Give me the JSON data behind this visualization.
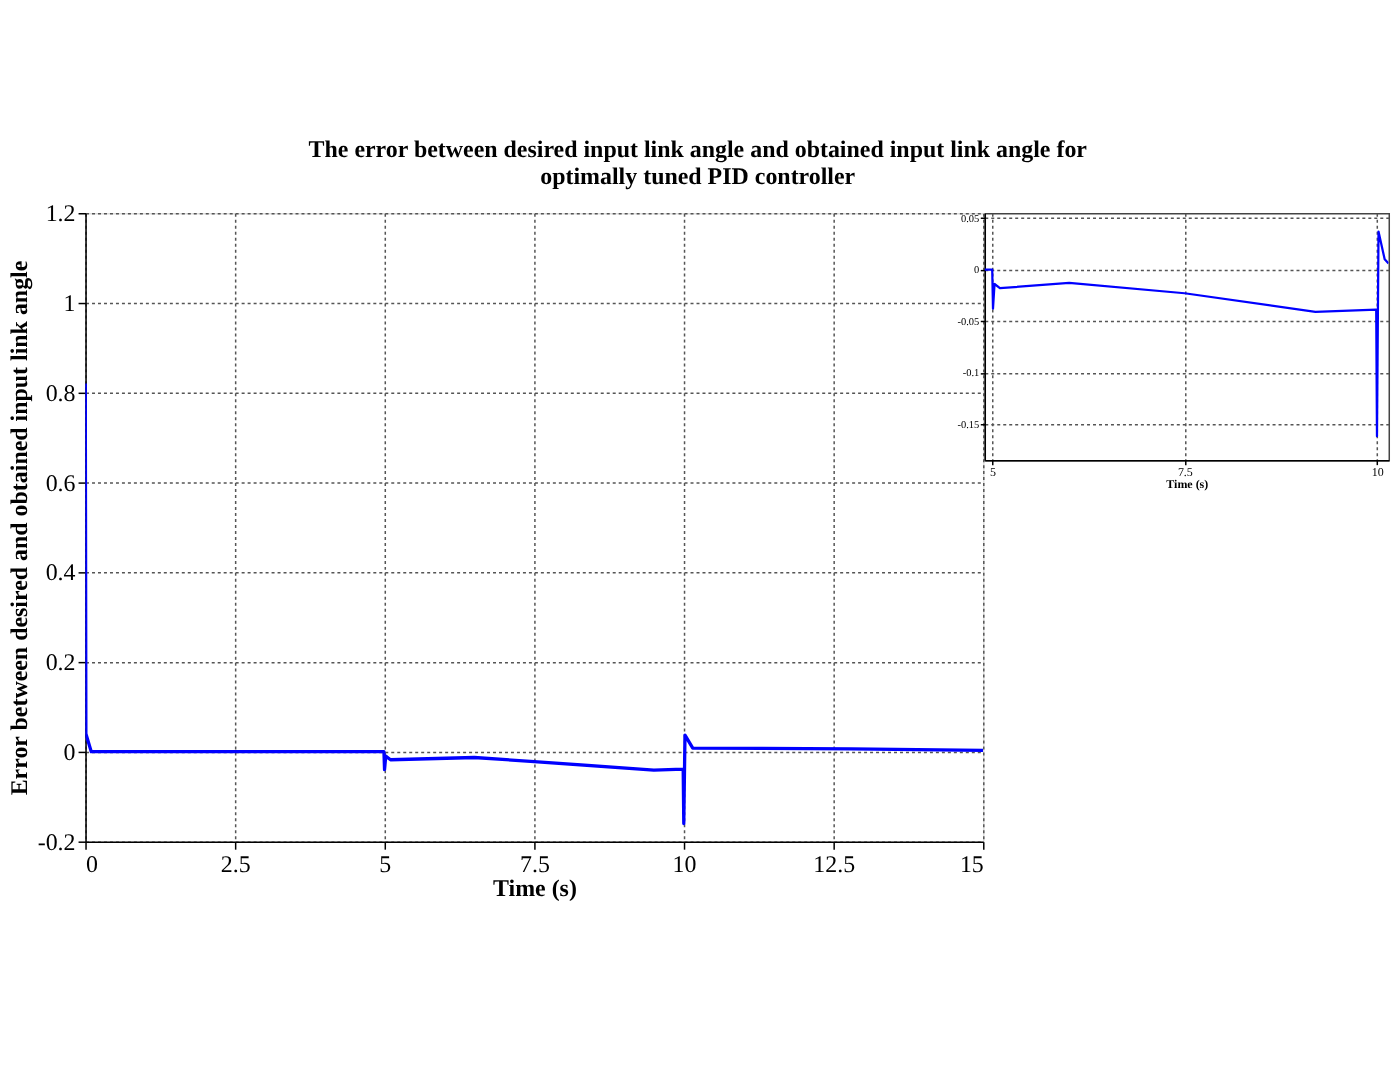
{
  "chart_data": [
    {
      "type": "line",
      "title": "The error between desired input link angle and obtained input link angle for optimally tuned PID controller",
      "xlabel": "Time (s)",
      "ylabel": "Error between desired and obtained input link angle",
      "xlim": [
        0,
        15
      ],
      "xticks": [
        0,
        2.5,
        5,
        7.5,
        10,
        12.5,
        15
      ],
      "ylim": [
        -0.2,
        1.2
      ],
      "yticks": [
        -0.2,
        0,
        0.2,
        0.4,
        0.6,
        0.8,
        1,
        1.2
      ],
      "grid": true,
      "line_style": "solid",
      "series": [
        {
          "color": "#0000ff",
          "x": [
            0,
            0.01,
            0.1,
            4.99,
            5.0,
            5.02,
            5.1,
            6.5,
            7.5,
            9.5,
            9.99,
            10.0,
            10.02,
            10.15,
            12.8,
            15
          ],
          "values": [
            0.82,
            0.04,
            0,
            0,
            -0.04,
            -0.01,
            -0.018,
            -0.013,
            -0.022,
            -0.041,
            -0.039,
            -0.16,
            0.037,
            0.008,
            0.006,
            0.003
          ]
        }
      ]
    },
    {
      "type": "line",
      "xlabel": "Time (s)",
      "xlim": [
        4.9,
        10.15
      ],
      "xticks": [
        5,
        7.5,
        10
      ],
      "ylim": [
        -0.185,
        0.055
      ],
      "yticks": [
        -0.15,
        -0.1,
        -0.05,
        0,
        0.05
      ],
      "grid": true,
      "line_style": "solid",
      "series": [
        {
          "color": "#0000ff",
          "x": [
            4.9,
            5.0,
            5.01,
            5.03,
            5.1,
            6,
            7.5,
            9.2,
            9.99,
            10.0,
            10.02,
            10.1,
            10.15
          ],
          "values": [
            0,
            0,
            -0.038,
            -0.014,
            -0.018,
            -0.013,
            -0.023,
            -0.041,
            -0.039,
            -0.162,
            0.037,
            0.01,
            0.006
          ]
        }
      ]
    }
  ]
}
